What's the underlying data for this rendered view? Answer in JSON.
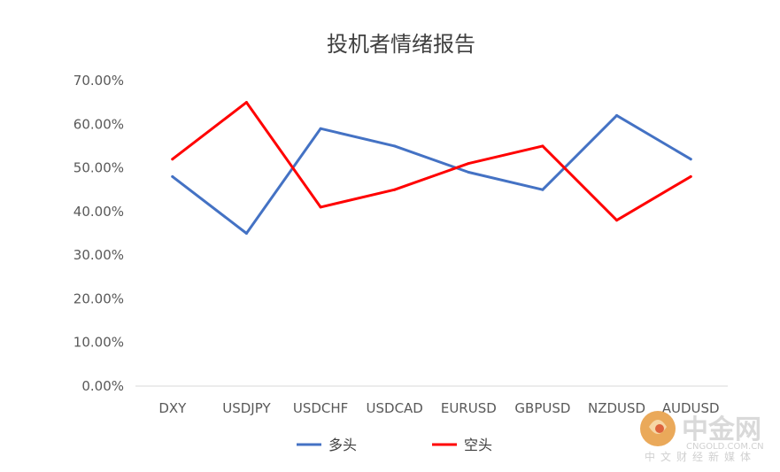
{
  "chart_data": {
    "type": "line",
    "title": "投机者情绪报告",
    "categories": [
      "DXY",
      "USDJPY",
      "USDCHF",
      "USDCAD",
      "EURUSD",
      "GBPUSD",
      "NZDUSD",
      "AUDUSD"
    ],
    "series": [
      {
        "name": "多头",
        "color": "#4472c4",
        "values": [
          48,
          35,
          59,
          55,
          49,
          45,
          62,
          52
        ]
      },
      {
        "name": "空头",
        "color": "#ff0000",
        "values": [
          52,
          65,
          41,
          45,
          51,
          55,
          38,
          48
        ]
      }
    ],
    "ylim": [
      0,
      70
    ],
    "yticks": [
      "0.00%",
      "10.00%",
      "20.00%",
      "30.00%",
      "40.00%",
      "50.00%",
      "60.00%",
      "70.00%"
    ],
    "legend_position": "bottom",
    "grid": false
  },
  "watermark": {
    "logo_text": "中金网",
    "domain": "CNGOLD.COM.CN",
    "tagline": "中文财经新媒体"
  }
}
